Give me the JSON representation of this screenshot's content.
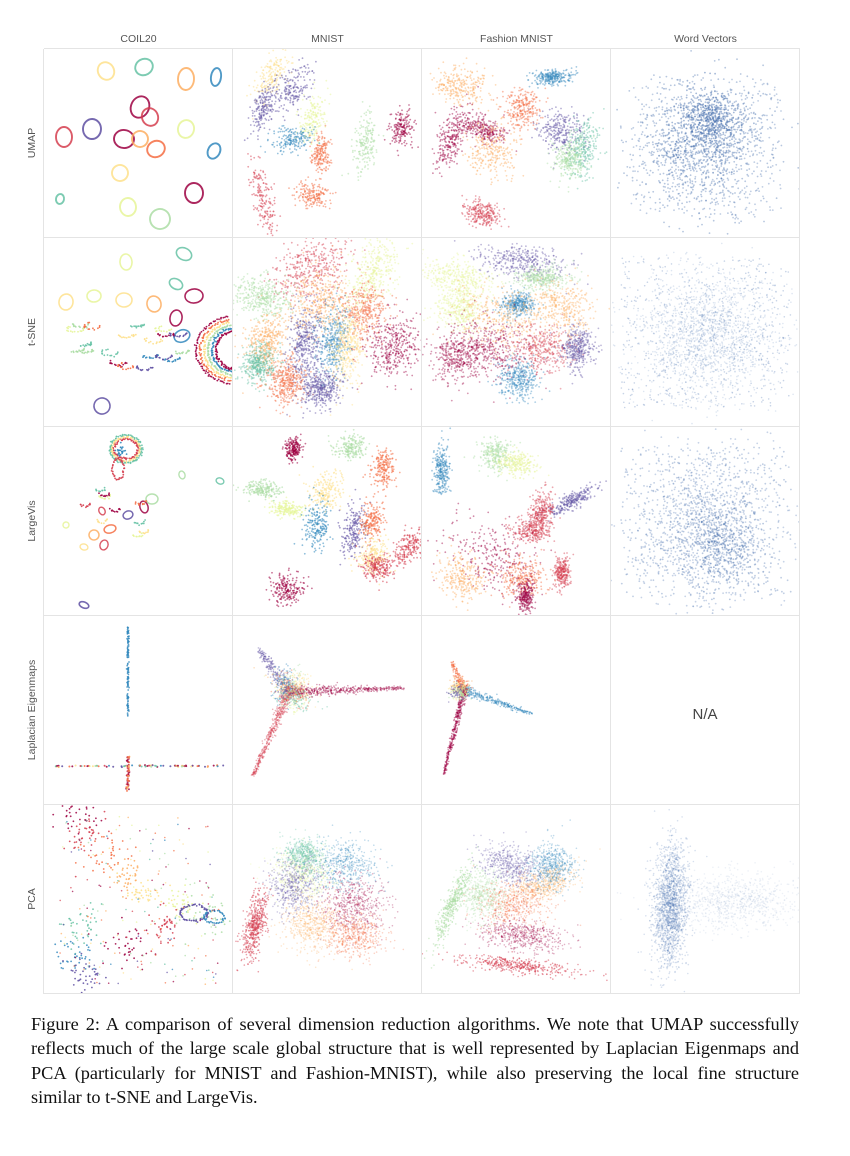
{
  "figure": {
    "columns": [
      "COIL20",
      "MNIST",
      "Fashion MNIST",
      "Word Vectors"
    ],
    "rows": [
      "UMAP",
      "t-SNE",
      "LargeVis",
      "Laplacian Eigenmaps",
      "PCA"
    ],
    "na_label": "N/A",
    "palette": [
      "#9e0142",
      "#d53e4f",
      "#f46d43",
      "#fdae61",
      "#fee08b",
      "#e6f598",
      "#abdda4",
      "#66c2a5",
      "#3288bd",
      "#5e4fa2"
    ],
    "word_color": "#4a72b0"
  },
  "caption": {
    "text": "Figure 2: A comparison of several dimension reduction algorithms. We note that UMAP successfully reflects much of the large scale global structure that is well represented by Laplacian Eigenmaps and PCA (particularly for MNIST and Fashion-MNIST), while also preserving the local fine structure similar to t-SNE and LargeVis."
  }
}
